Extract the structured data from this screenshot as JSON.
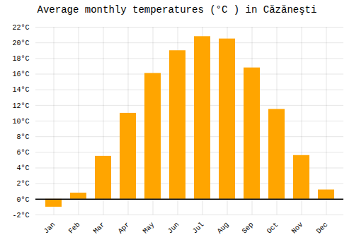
{
  "chart_data": {
    "type": "bar",
    "title": "Average monthly temperatures (°C ) in Căzăneşti",
    "categories": [
      "Jan",
      "Feb",
      "Mar",
      "Apr",
      "May",
      "Jun",
      "Jul",
      "Aug",
      "Sep",
      "Oct",
      "Nov",
      "Dec"
    ],
    "values": [
      -1.0,
      0.8,
      5.5,
      11.0,
      16.1,
      19.0,
      20.8,
      20.5,
      16.8,
      11.5,
      5.6,
      1.2
    ],
    "color": "#FFA500",
    "ylim": [
      -2,
      22
    ],
    "yticks": [
      {
        "value": -2,
        "label": "-2°C"
      },
      {
        "value": 0,
        "label": "0°C"
      },
      {
        "value": 2,
        "label": "2°C"
      },
      {
        "value": 4,
        "label": "4°C"
      },
      {
        "value": 6,
        "label": "6°C"
      },
      {
        "value": 8,
        "label": "8°C"
      },
      {
        "value": 10,
        "label": "10°C"
      },
      {
        "value": 12,
        "label": "12°C"
      },
      {
        "value": 14,
        "label": "14°C"
      },
      {
        "value": 16,
        "label": "16°C"
      },
      {
        "value": 18,
        "label": "18°C"
      },
      {
        "value": 20,
        "label": "20°C"
      },
      {
        "value": 22,
        "label": "22°C"
      }
    ],
    "grid": true
  }
}
